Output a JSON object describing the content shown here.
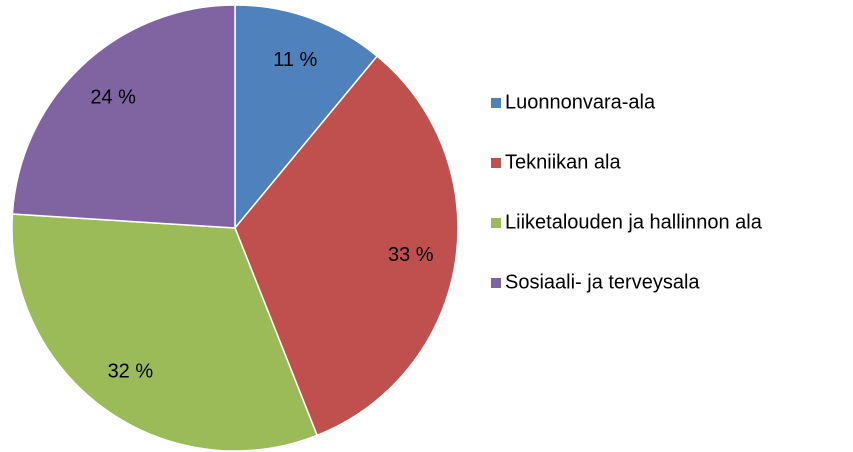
{
  "chart_data": {
    "type": "pie",
    "categories": [
      "Luonnonvara-ala",
      "Tekniikan ala",
      "Liiketalouden ja hallinnon ala",
      "Sosiaali- ja terveysala"
    ],
    "values": [
      11,
      33,
      32,
      24
    ],
    "value_labels": [
      "11 %",
      "33 %",
      "32 %",
      "24 %"
    ],
    "colors": [
      "#4f81bd",
      "#c0504d",
      "#9bbb59",
      "#8064a2"
    ],
    "legend": "right"
  }
}
